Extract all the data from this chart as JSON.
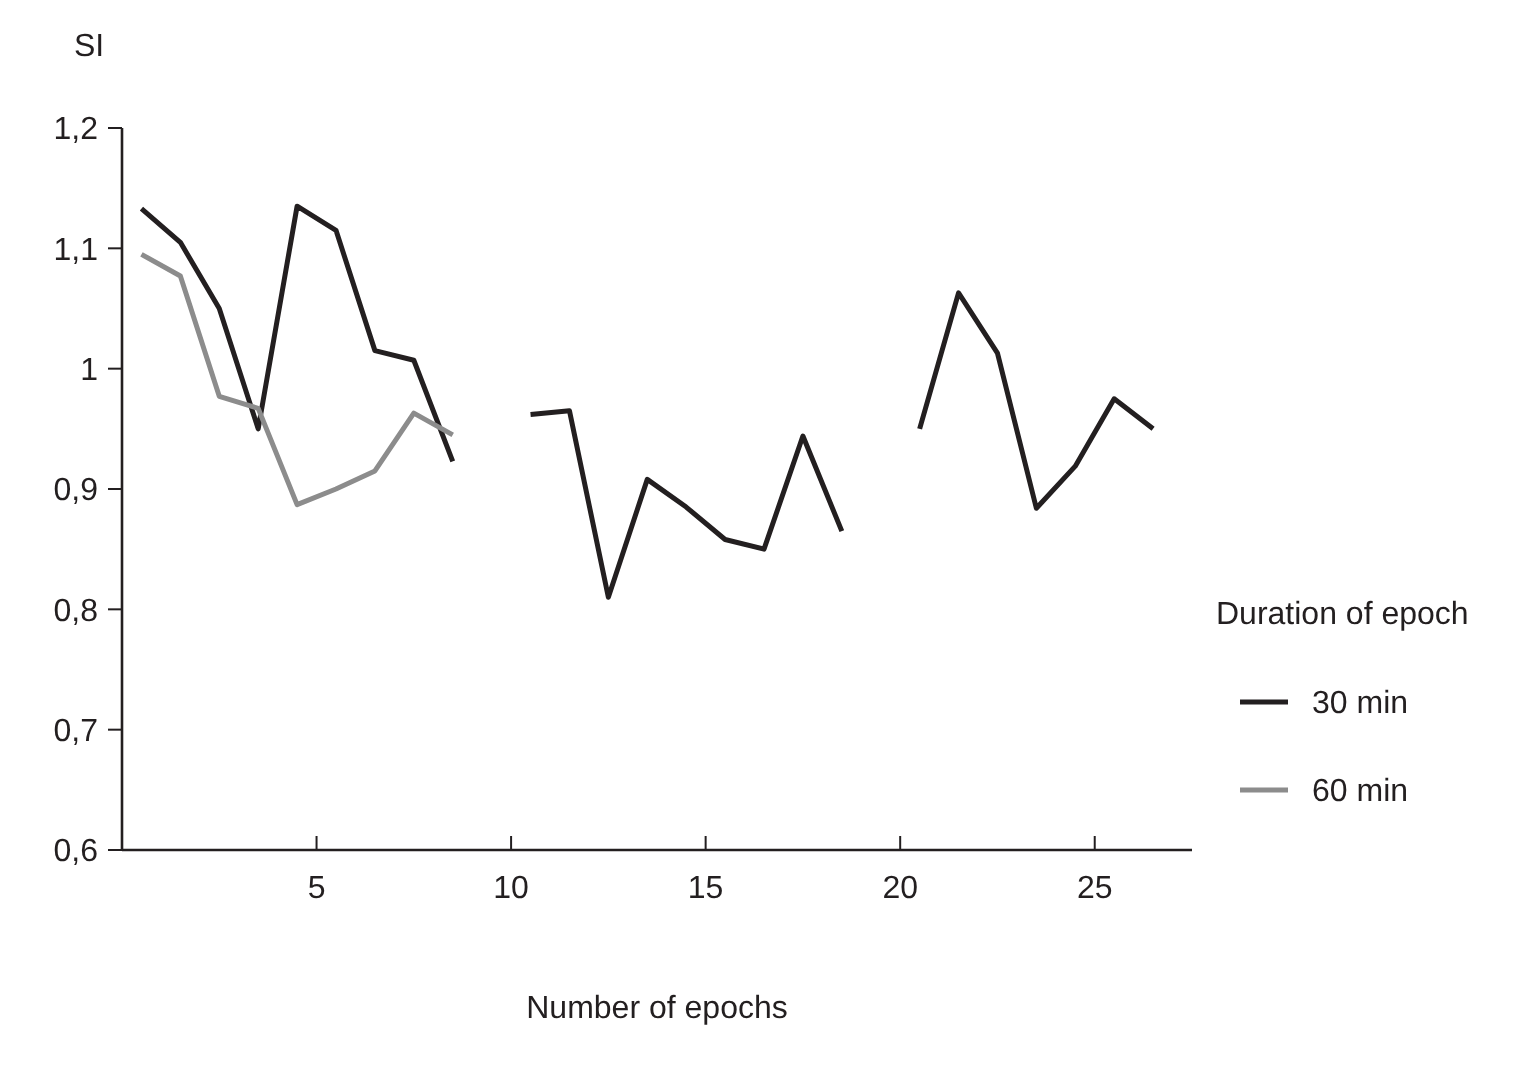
{
  "chart_data": {
    "type": "line",
    "xlabel": "Number of epochs",
    "ylabel": "SI",
    "legend_title": "Duration of epoch",
    "legend": "right",
    "marker": "none",
    "line_style": "solid",
    "grid": false,
    "x": [
      0.5,
      1.5,
      2.5,
      3.5,
      4.5,
      5.5,
      6.5,
      7.5,
      8.5,
      9.5,
      10.5,
      11.5,
      12.5,
      13.5,
      14.5,
      15.5,
      16.5,
      17.5,
      18.5,
      19.5,
      20.5,
      21.5,
      22.5,
      23.5,
      24.5,
      25.5,
      26.5
    ],
    "xlim": [
      0,
      27.5
    ],
    "xticks": [
      5,
      10,
      15,
      20,
      25
    ],
    "ylim": [
      0.6,
      1.2
    ],
    "yticks": [
      {
        "value": 0.6,
        "label": "0,6"
      },
      {
        "value": 0.7,
        "label": "0,7"
      },
      {
        "value": 0.8,
        "label": "0,8"
      },
      {
        "value": 0.9,
        "label": "0,9"
      },
      1,
      {
        "value": 1.1,
        "label": "1,1"
      },
      {
        "value": 1.2,
        "label": "1,2"
      }
    ],
    "series": [
      {
        "name": "30 min",
        "color": "#231f20",
        "values": [
          1.133,
          1.105,
          1.05,
          0.95,
          1.135,
          1.115,
          1.015,
          1.007,
          0.923,
          null,
          0.962,
          0.965,
          0.81,
          0.908,
          0.885,
          0.858,
          0.85,
          0.944,
          0.865,
          null,
          0.95,
          1.063,
          1.013,
          0.884,
          0.919,
          0.975,
          0.95
        ]
      },
      {
        "name": "60 min",
        "color": "#8c8c8c",
        "x": [
          0.5,
          1.5,
          2.5,
          3.5,
          4.5,
          5.5,
          6.5,
          7.5,
          8.5
        ],
        "values": [
          1.095,
          1.077,
          0.977,
          0.967,
          0.887,
          0.9,
          0.915,
          0.963,
          0.945
        ]
      }
    ]
  }
}
